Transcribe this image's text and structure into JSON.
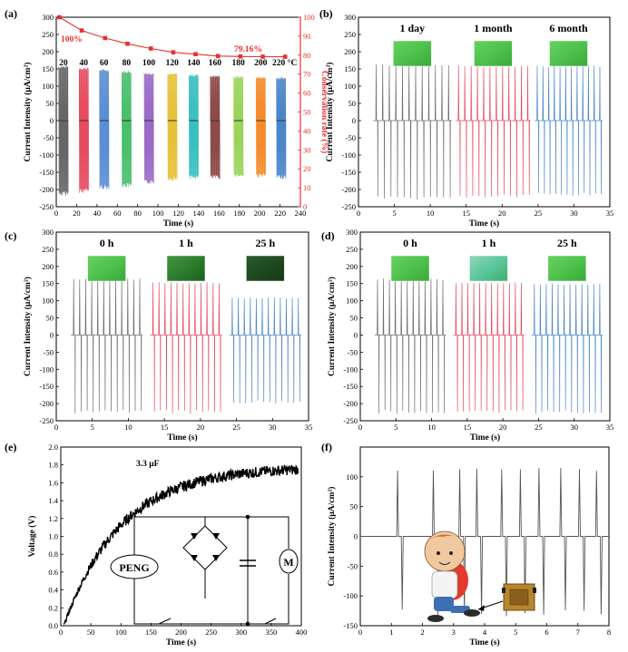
{
  "figure_name": "Six-panel PENG stability and application figure",
  "colors": {
    "black": "#1a1a1a",
    "gray": "#6e6e6e",
    "red": "#e63b3b",
    "blue": "#4a86c8",
    "rate": "#e8312f",
    "thumb_bright": "#4cc44a",
    "thumb_dark": "#1f5a22"
  },
  "chart_data": [
    {
      "id": "a",
      "panel_label": "(a)",
      "type": "bar",
      "xlabel": "Time (s)",
      "ylabel": "Current Intensity (μA/cm²)",
      "y2label": "Conservation rate (%)",
      "xlim": [
        0,
        240
      ],
      "ylim": [
        -250,
        300
      ],
      "y2lim": [
        0,
        100
      ],
      "x_ticks": [
        "0",
        "20",
        "40",
        "60",
        "80",
        "100",
        "120",
        "140",
        "160",
        "180",
        "200",
        "220",
        "240"
      ],
      "y_ticks": [
        "-250",
        "-200",
        "-150",
        "-100",
        "-50",
        "0",
        "50",
        "100",
        "150",
        "200",
        "250",
        "300"
      ],
      "y2_ticks": [
        "0",
        "10",
        "20",
        "30",
        "40",
        "50",
        "60",
        "70",
        "80",
        "90",
        "100"
      ],
      "temperatures": [
        "20",
        "40",
        "60",
        "80",
        "100",
        "120",
        "140",
        "160",
        "180",
        "200",
        "220 °C"
      ],
      "segment_centers_s": [
        7,
        27,
        47,
        69,
        91,
        114,
        135,
        156,
        179,
        201,
        221
      ],
      "segment_max": [
        160,
        155,
        150,
        145,
        140,
        138,
        135,
        132,
        130,
        128,
        126
      ],
      "segment_min": [
        -220,
        -210,
        -200,
        -195,
        -185,
        -175,
        -170,
        -170,
        -165,
        -165,
        -170
      ],
      "segment_colors": [
        "#666666",
        "#e84a5f",
        "#5a8fd4",
        "#4bbf6e",
        "#9b6bc5",
        "#e6c23a",
        "#3bbfc0",
        "#8c4a4a",
        "#9bd45a",
        "#f58b2a",
        "#4a86c8"
      ],
      "conservation_rate_x": [
        3,
        25,
        48,
        70,
        93,
        115,
        137,
        159,
        181,
        203,
        225
      ],
      "conservation_rate_y": [
        100,
        93,
        89,
        86,
        83.5,
        81.5,
        80.5,
        79.5,
        79.3,
        79.2,
        79.16
      ],
      "annotations": [
        "100%",
        "79.16%"
      ]
    },
    {
      "id": "b",
      "panel_label": "(b)",
      "type": "line",
      "xlabel": "Time (s)",
      "ylabel": "Current Intensity (μA/cm²)",
      "xlim": [
        0,
        35
      ],
      "ylim": [
        -250,
        300
      ],
      "x_ticks": [
        "0",
        "5",
        "10",
        "15",
        "20",
        "25",
        "30",
        "35"
      ],
      "y_ticks": [
        "-250",
        "-200",
        "-150",
        "-100",
        "-50",
        "0",
        "50",
        "100",
        "150",
        "200",
        "250",
        "300"
      ],
      "series": [
        {
          "name": "1 day",
          "x_range": [
            2,
            13
          ],
          "peak": 165,
          "trough": -230
        },
        {
          "name": "1 month",
          "x_range": [
            13.5,
            24
          ],
          "peak": 160,
          "trough": -225
        },
        {
          "name": "6 month",
          "x_range": [
            24.5,
            34
          ],
          "peak": 160,
          "trough": -220
        }
      ],
      "thumbs": [
        "bright",
        "bright",
        "bright"
      ]
    },
    {
      "id": "c",
      "panel_label": "(c)",
      "type": "line",
      "xlabel": "Time (s)",
      "ylabel": "Current Intensity (μA/cm²)",
      "xlim": [
        0,
        35
      ],
      "ylim": [
        -250,
        300
      ],
      "x_ticks": [
        "0",
        "5",
        "10",
        "15",
        "20",
        "25",
        "30",
        "35"
      ],
      "y_ticks": [
        "-250",
        "-200",
        "-150",
        "-100",
        "-50",
        "0",
        "50",
        "100",
        "150",
        "200",
        "250",
        "300"
      ],
      "series": [
        {
          "name": "0 h",
          "x_range": [
            2,
            12
          ],
          "peak": 165,
          "trough": -230
        },
        {
          "name": "1 h",
          "x_range": [
            13,
            23
          ],
          "peak": 155,
          "trough": -230
        },
        {
          "name": "25 h",
          "x_range": [
            24,
            34
          ],
          "peak": 110,
          "trough": -200
        }
      ],
      "thumbs": [
        "bright",
        "mid",
        "dark"
      ]
    },
    {
      "id": "d",
      "panel_label": "(d)",
      "type": "line",
      "xlabel": "Time (s)",
      "ylabel": "Current Intensity (μA/cm²)",
      "xlim": [
        0,
        35
      ],
      "ylim": [
        -250,
        300
      ],
      "x_ticks": [
        "0",
        "5",
        "10",
        "15",
        "20",
        "25",
        "30",
        "35"
      ],
      "y_ticks": [
        "-250",
        "-200",
        "-150",
        "-100",
        "-50",
        "0",
        "50",
        "100",
        "150",
        "200",
        "250",
        "300"
      ],
      "series": [
        {
          "name": "0 h",
          "x_range": [
            2,
            12
          ],
          "peak": 165,
          "trough": -230
        },
        {
          "name": "1 h",
          "x_range": [
            13,
            23
          ],
          "peak": 155,
          "trough": -230
        },
        {
          "name": "25 h",
          "x_range": [
            24,
            34
          ],
          "peak": 150,
          "trough": -230
        }
      ],
      "thumbs": [
        "bright",
        "light",
        "bright"
      ]
    },
    {
      "id": "e",
      "panel_label": "(e)",
      "type": "line",
      "xlabel": "Time (s)",
      "ylabel": "Voltage (V)",
      "xlim": [
        0,
        400
      ],
      "ylim": [
        0,
        2.0
      ],
      "x_ticks": [
        "0",
        "50",
        "100",
        "150",
        "200",
        "250",
        "300",
        "350",
        "400"
      ],
      "y_ticks": [
        "0.0",
        "0.2",
        "0.4",
        "0.6",
        "0.8",
        "1.0",
        "1.2",
        "1.4",
        "1.6",
        "1.8",
        "2.0"
      ],
      "capacitance_label": "3.3 μF",
      "charging_curve": {
        "v_max": 1.78,
        "tau_s": 95,
        "t_start": 5,
        "t_end": 395
      },
      "circuit_labels": {
        "source": "PENG",
        "load": "M"
      }
    },
    {
      "id": "f",
      "panel_label": "(f)",
      "type": "line",
      "xlabel": "Time (s)",
      "ylabel": "Current Intensity (μA/cm²)",
      "xlim": [
        0,
        8
      ],
      "ylim": [
        -150,
        150
      ],
      "x_ticks": [
        "0",
        "1",
        "2",
        "3",
        "4",
        "5",
        "6",
        "7",
        "8"
      ],
      "y_ticks": [
        "-150",
        "-100",
        "-50",
        "0",
        "50",
        "100"
      ],
      "peak_times": [
        1.2,
        2.35,
        3.2,
        3.75,
        4.55,
        5.15,
        5.75,
        6.45,
        7.05,
        7.6
      ],
      "peak_height": 115,
      "trough_depth": -135
    }
  ]
}
